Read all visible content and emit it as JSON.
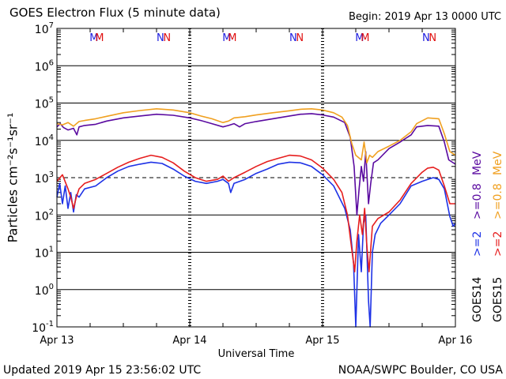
{
  "chart_data": {
    "type": "line",
    "title": "GOES Electron Flux (5 minute data)",
    "begin_label": "Begin: 2019 Apr 13 0000 UTC",
    "xlabel": "Universal Time",
    "ylabel": "Particles cm⁻²s⁻¹sr⁻¹",
    "y_scale": "log",
    "ylim": [
      0.1,
      10000000
    ],
    "y_ticks": [
      {
        "value": 10000000,
        "base": "10",
        "exp": "7"
      },
      {
        "value": 1000000,
        "base": "10",
        "exp": "6"
      },
      {
        "value": 100000,
        "base": "10",
        "exp": "5"
      },
      {
        "value": 10000,
        "base": "10",
        "exp": "4"
      },
      {
        "value": 1000,
        "base": "10",
        "exp": "3"
      },
      {
        "value": 100,
        "base": "10",
        "exp": "2"
      },
      {
        "value": 10,
        "base": "10",
        "exp": "1"
      },
      {
        "value": 1,
        "base": "10",
        "exp": "0"
      },
      {
        "value": 0.1,
        "base": "10",
        "exp": "-1"
      }
    ],
    "x_ticks": [
      "Apr 13",
      "Apr 14",
      "Apr 15",
      "Apr 16"
    ],
    "x_unit": "hours since 2019 Apr 13 0000 UTC",
    "xlim": [
      0,
      72
    ],
    "grid": true,
    "dashed_threshold": 1000,
    "top_markers": [
      {
        "hour": 6.7,
        "label": "M",
        "color": "#2020e0"
      },
      {
        "hour": 7.7,
        "label": "M",
        "color": "#e01010"
      },
      {
        "hour": 18.7,
        "label": "N",
        "color": "#2020e0"
      },
      {
        "hour": 19.9,
        "label": "N",
        "color": "#e01010"
      },
      {
        "hour": 30.7,
        "label": "M",
        "color": "#2020e0"
      },
      {
        "hour": 31.7,
        "label": "M",
        "color": "#e01010"
      },
      {
        "hour": 42.7,
        "label": "N",
        "color": "#2020e0"
      },
      {
        "hour": 43.9,
        "label": "N",
        "color": "#e01010"
      },
      {
        "hour": 54.7,
        "label": "M",
        "color": "#2020e0"
      },
      {
        "hour": 55.7,
        "label": "M",
        "color": "#e01010"
      },
      {
        "hour": 66.7,
        "label": "N",
        "color": "#2020e0"
      },
      {
        "hour": 67.9,
        "label": "N",
        "color": "#e01010"
      }
    ],
    "series": [
      {
        "name": ">=0.8 MeV",
        "satellite": "GOES14",
        "color": "#5a0aa0",
        "points": [
          [
            0,
            23000
          ],
          [
            0.6,
            28000
          ],
          [
            1.2,
            22000
          ],
          [
            2,
            19000
          ],
          [
            3,
            21000
          ],
          [
            3.6,
            14000
          ],
          [
            4,
            23000
          ],
          [
            5,
            25000
          ],
          [
            7,
            27000
          ],
          [
            9,
            33000
          ],
          [
            12,
            40000
          ],
          [
            15,
            45000
          ],
          [
            18,
            50000
          ],
          [
            21,
            47000
          ],
          [
            24,
            40000
          ],
          [
            26,
            34000
          ],
          [
            28,
            28000
          ],
          [
            30,
            23000
          ],
          [
            31,
            25000
          ],
          [
            32,
            28000
          ],
          [
            33,
            23000
          ],
          [
            34,
            28000
          ],
          [
            36,
            32000
          ],
          [
            39,
            38000
          ],
          [
            42,
            45000
          ],
          [
            44,
            50000
          ],
          [
            46,
            52000
          ],
          [
            48,
            48000
          ],
          [
            50,
            42000
          ],
          [
            52,
            30000
          ],
          [
            53,
            12000
          ],
          [
            53.7,
            2000
          ],
          [
            54.2,
            100
          ],
          [
            54.6,
            500
          ],
          [
            55,
            2000
          ],
          [
            55.4,
            800
          ],
          [
            55.8,
            5000
          ],
          [
            56.3,
            200
          ],
          [
            56.7,
            700
          ],
          [
            57.2,
            2500
          ],
          [
            58,
            3000
          ],
          [
            60,
            6000
          ],
          [
            62,
            9000
          ],
          [
            64,
            14000
          ],
          [
            65,
            23000
          ],
          [
            67,
            25000
          ],
          [
            69,
            24000
          ],
          [
            70,
            9000
          ],
          [
            70.8,
            3000
          ],
          [
            72,
            2300
          ]
        ]
      },
      {
        "name": ">=0.8 MeV",
        "satellite": "GOES15",
        "color": "#f0a020",
        "points": [
          [
            0,
            28000
          ],
          [
            1,
            26000
          ],
          [
            2,
            30000
          ],
          [
            3,
            24000
          ],
          [
            4,
            32000
          ],
          [
            5,
            34000
          ],
          [
            7,
            38000
          ],
          [
            9,
            44000
          ],
          [
            12,
            55000
          ],
          [
            15,
            63000
          ],
          [
            18,
            70000
          ],
          [
            21,
            65000
          ],
          [
            24,
            55000
          ],
          [
            26,
            45000
          ],
          [
            28,
            38000
          ],
          [
            30,
            30000
          ],
          [
            31,
            33000
          ],
          [
            32,
            40000
          ],
          [
            34,
            43000
          ],
          [
            36,
            48000
          ],
          [
            39,
            55000
          ],
          [
            42,
            62000
          ],
          [
            44,
            68000
          ],
          [
            46,
            70000
          ],
          [
            48,
            65000
          ],
          [
            50,
            55000
          ],
          [
            51.5,
            42000
          ],
          [
            52.5,
            25000
          ],
          [
            53.3,
            8000
          ],
          [
            54,
            4000
          ],
          [
            55,
            3000
          ],
          [
            55.5,
            9000
          ],
          [
            56,
            2500
          ],
          [
            56.5,
            4000
          ],
          [
            57,
            3500
          ],
          [
            58,
            5000
          ],
          [
            60,
            7000
          ],
          [
            62,
            10000
          ],
          [
            64,
            17000
          ],
          [
            65,
            28000
          ],
          [
            67,
            40000
          ],
          [
            69,
            38000
          ],
          [
            70,
            15000
          ],
          [
            71,
            5000
          ],
          [
            72,
            4000
          ]
        ]
      },
      {
        "name": ">=2 MeV",
        "satellite": "GOES14",
        "color": "#1e32e6",
        "points": [
          [
            0,
            300
          ],
          [
            0.5,
            700
          ],
          [
            1,
            200
          ],
          [
            1.5,
            600
          ],
          [
            2,
            150
          ],
          [
            2.5,
            400
          ],
          [
            3,
            120
          ],
          [
            3.5,
            350
          ],
          [
            4,
            300
          ],
          [
            5,
            500
          ],
          [
            7,
            600
          ],
          [
            9,
            1000
          ],
          [
            11,
            1500
          ],
          [
            13,
            2000
          ],
          [
            15,
            2300
          ],
          [
            17,
            2600
          ],
          [
            19,
            2400
          ],
          [
            21,
            1700
          ],
          [
            23,
            1100
          ],
          [
            25,
            800
          ],
          [
            27,
            700
          ],
          [
            29,
            800
          ],
          [
            30,
            900
          ],
          [
            31,
            700
          ],
          [
            31.4,
            400
          ],
          [
            32,
            700
          ],
          [
            34,
            900
          ],
          [
            36,
            1300
          ],
          [
            38,
            1700
          ],
          [
            40,
            2300
          ],
          [
            42,
            2600
          ],
          [
            44,
            2500
          ],
          [
            46,
            2000
          ],
          [
            48,
            1200
          ],
          [
            50,
            600
          ],
          [
            52,
            150
          ],
          [
            53,
            40
          ],
          [
            53.6,
            5
          ],
          [
            54,
            0.1
          ],
          [
            54.5,
            30
          ],
          [
            55,
            3
          ],
          [
            55.4,
            60
          ],
          [
            55.8,
            100
          ],
          [
            56.3,
            0.5
          ],
          [
            56.6,
            0.1
          ],
          [
            57,
            10
          ],
          [
            57.5,
            30
          ],
          [
            58.5,
            60
          ],
          [
            60,
            100
          ],
          [
            62,
            200
          ],
          [
            64,
            600
          ],
          [
            66,
            800
          ],
          [
            67,
            900
          ],
          [
            68,
            1000
          ],
          [
            69,
            900
          ],
          [
            70,
            500
          ],
          [
            71,
            90
          ],
          [
            71.6,
            50
          ],
          [
            72,
            60
          ]
        ]
      },
      {
        "name": ">=2 MeV",
        "satellite": "GOES15",
        "color": "#e61e1e",
        "points": [
          [
            0,
            800
          ],
          [
            1,
            1200
          ],
          [
            2,
            500
          ],
          [
            2.5,
            300
          ],
          [
            3,
            150
          ],
          [
            3.5,
            300
          ],
          [
            4,
            500
          ],
          [
            5,
            700
          ],
          [
            7,
            900
          ],
          [
            9,
            1300
          ],
          [
            11,
            1900
          ],
          [
            13,
            2600
          ],
          [
            15,
            3300
          ],
          [
            17,
            4000
          ],
          [
            19,
            3500
          ],
          [
            21,
            2500
          ],
          [
            23,
            1500
          ],
          [
            25,
            1000
          ],
          [
            27,
            800
          ],
          [
            29,
            900
          ],
          [
            30,
            1100
          ],
          [
            31,
            800
          ],
          [
            32,
            1000
          ],
          [
            34,
            1400
          ],
          [
            36,
            2000
          ],
          [
            38,
            2700
          ],
          [
            40,
            3300
          ],
          [
            42,
            4000
          ],
          [
            44,
            3800
          ],
          [
            46,
            3000
          ],
          [
            48,
            1800
          ],
          [
            50,
            900
          ],
          [
            51.5,
            400
          ],
          [
            52.5,
            100
          ],
          [
            53,
            25
          ],
          [
            53.8,
            3
          ],
          [
            54.2,
            20
          ],
          [
            54.7,
            100
          ],
          [
            55.2,
            30
          ],
          [
            55.6,
            150
          ],
          [
            56,
            15
          ],
          [
            56.4,
            3
          ],
          [
            57,
            50
          ],
          [
            58,
            80
          ],
          [
            60,
            120
          ],
          [
            62,
            250
          ],
          [
            64,
            700
          ],
          [
            66,
            1400
          ],
          [
            67,
            1800
          ],
          [
            68,
            1900
          ],
          [
            69,
            1600
          ],
          [
            70,
            600
          ],
          [
            71,
            200
          ],
          [
            72,
            200
          ]
        ]
      }
    ]
  },
  "legend_right": [
    {
      "label": ">=2",
      "color": "#1e32e6"
    },
    {
      "label": ">=0.8",
      "color": "#5a0aa0"
    },
    {
      "label": "MeV",
      "color": "#5a0aa0"
    },
    {
      "label": ">=2",
      "color": "#e61e1e"
    },
    {
      "label": ">=0.8",
      "color": "#f0a020"
    },
    {
      "label": "MeV",
      "color": "#f0a020"
    },
    {
      "label": "GOES14",
      "color": "#000000"
    },
    {
      "label": "GOES15",
      "color": "#000000"
    }
  ],
  "footer": {
    "updated": "Updated 2019 Apr 15 23:56:02 UTC",
    "credit": "NOAA/SWPC Boulder, CO USA"
  }
}
